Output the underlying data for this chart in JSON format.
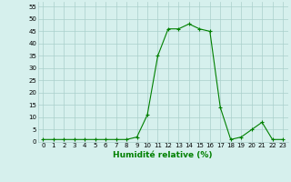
{
  "x": [
    0,
    1,
    2,
    3,
    4,
    5,
    6,
    7,
    8,
    9,
    10,
    11,
    12,
    13,
    14,
    15,
    16,
    17,
    18,
    19,
    20,
    21,
    22,
    23
  ],
  "y": [
    1,
    1,
    1,
    1,
    1,
    1,
    1,
    1,
    1,
    2,
    11,
    35,
    46,
    46,
    48,
    46,
    45,
    14,
    1,
    2,
    5,
    8,
    1,
    1
  ],
  "line_color": "#008000",
  "marker": "+",
  "marker_size": 3,
  "bg_color": "#d6f0ed",
  "grid_color": "#aacfcb",
  "xlabel": "Humidité relative (%)",
  "ylim": [
    0,
    57
  ],
  "xlim": [
    -0.5,
    23.5
  ],
  "yticks": [
    0,
    5,
    10,
    15,
    20,
    25,
    30,
    35,
    40,
    45,
    50,
    55
  ],
  "xticks": [
    0,
    1,
    2,
    3,
    4,
    5,
    6,
    7,
    8,
    9,
    10,
    11,
    12,
    13,
    14,
    15,
    16,
    17,
    18,
    19,
    20,
    21,
    22,
    23
  ],
  "tick_fontsize": 5,
  "xlabel_fontsize": 6.5
}
